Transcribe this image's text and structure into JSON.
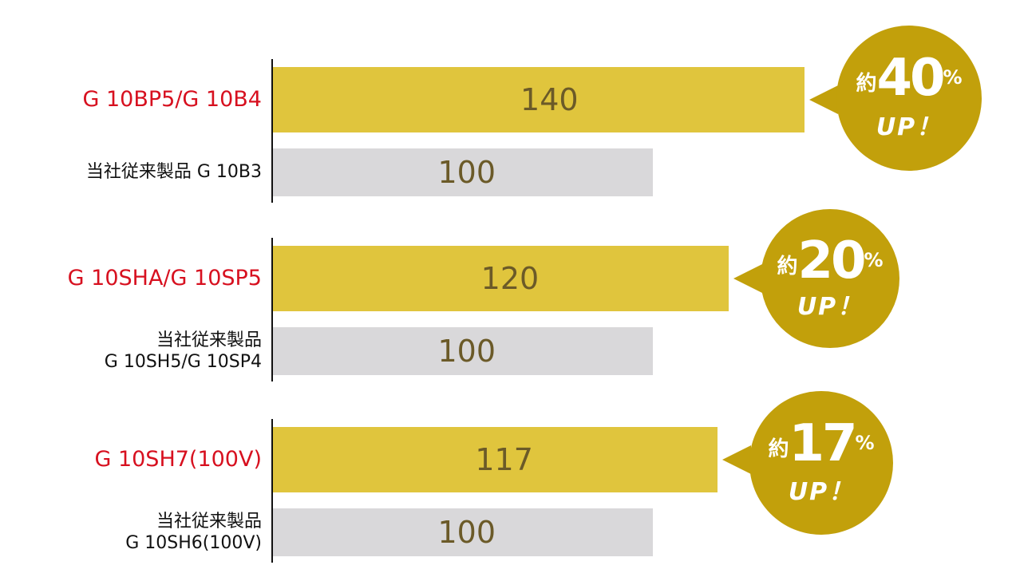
{
  "colors": {
    "new_bar": "#e0c53d",
    "old_bar": "#d9d8da",
    "new_label": "#d7101f",
    "old_label": "#111111",
    "callout": "#c2a00b",
    "axis": "#111111"
  },
  "chart_data": [
    {
      "type": "bar",
      "orientation": "horizontal",
      "series": [
        {
          "label": "G 10BP5/G 10B4",
          "value": 140,
          "color": "#e0c53d"
        },
        {
          "label": "当社従来製品 G 10B3",
          "value": 100,
          "color": "#d9d8da"
        }
      ],
      "callout": {
        "prefix": "約",
        "number": "40",
        "suffix": "%",
        "up": "UP！"
      },
      "labels": {
        "new": "G 10BP5/G 10B4",
        "old": [
          "当社従来製品 G 10B3"
        ]
      }
    },
    {
      "type": "bar",
      "orientation": "horizontal",
      "series": [
        {
          "label": "G 10SHA/G 10SP5",
          "value": 120,
          "color": "#e0c53d"
        },
        {
          "label": "当社従来製品 G 10SH5/G 10SP4",
          "value": 100,
          "color": "#d9d8da"
        }
      ],
      "callout": {
        "prefix": "約",
        "number": "20",
        "suffix": "%",
        "up": "UP！"
      },
      "labels": {
        "new": "G 10SHA/G 10SP5",
        "old": [
          "当社従来製品",
          "G 10SH5/G 10SP4"
        ]
      }
    },
    {
      "type": "bar",
      "orientation": "horizontal",
      "series": [
        {
          "label": "G 10SH7(100V)",
          "value": 117,
          "color": "#e0c53d"
        },
        {
          "label": "当社従来製品 G 10SH6(100V)",
          "value": 100,
          "color": "#d9d8da"
        }
      ],
      "callout": {
        "prefix": "約",
        "number": "17",
        "suffix": "%",
        "up": "UP！"
      },
      "labels": {
        "new": "G 10SH7(100V)",
        "old": [
          "当社従来製品",
          "G 10SH6(100V)"
        ]
      }
    }
  ]
}
